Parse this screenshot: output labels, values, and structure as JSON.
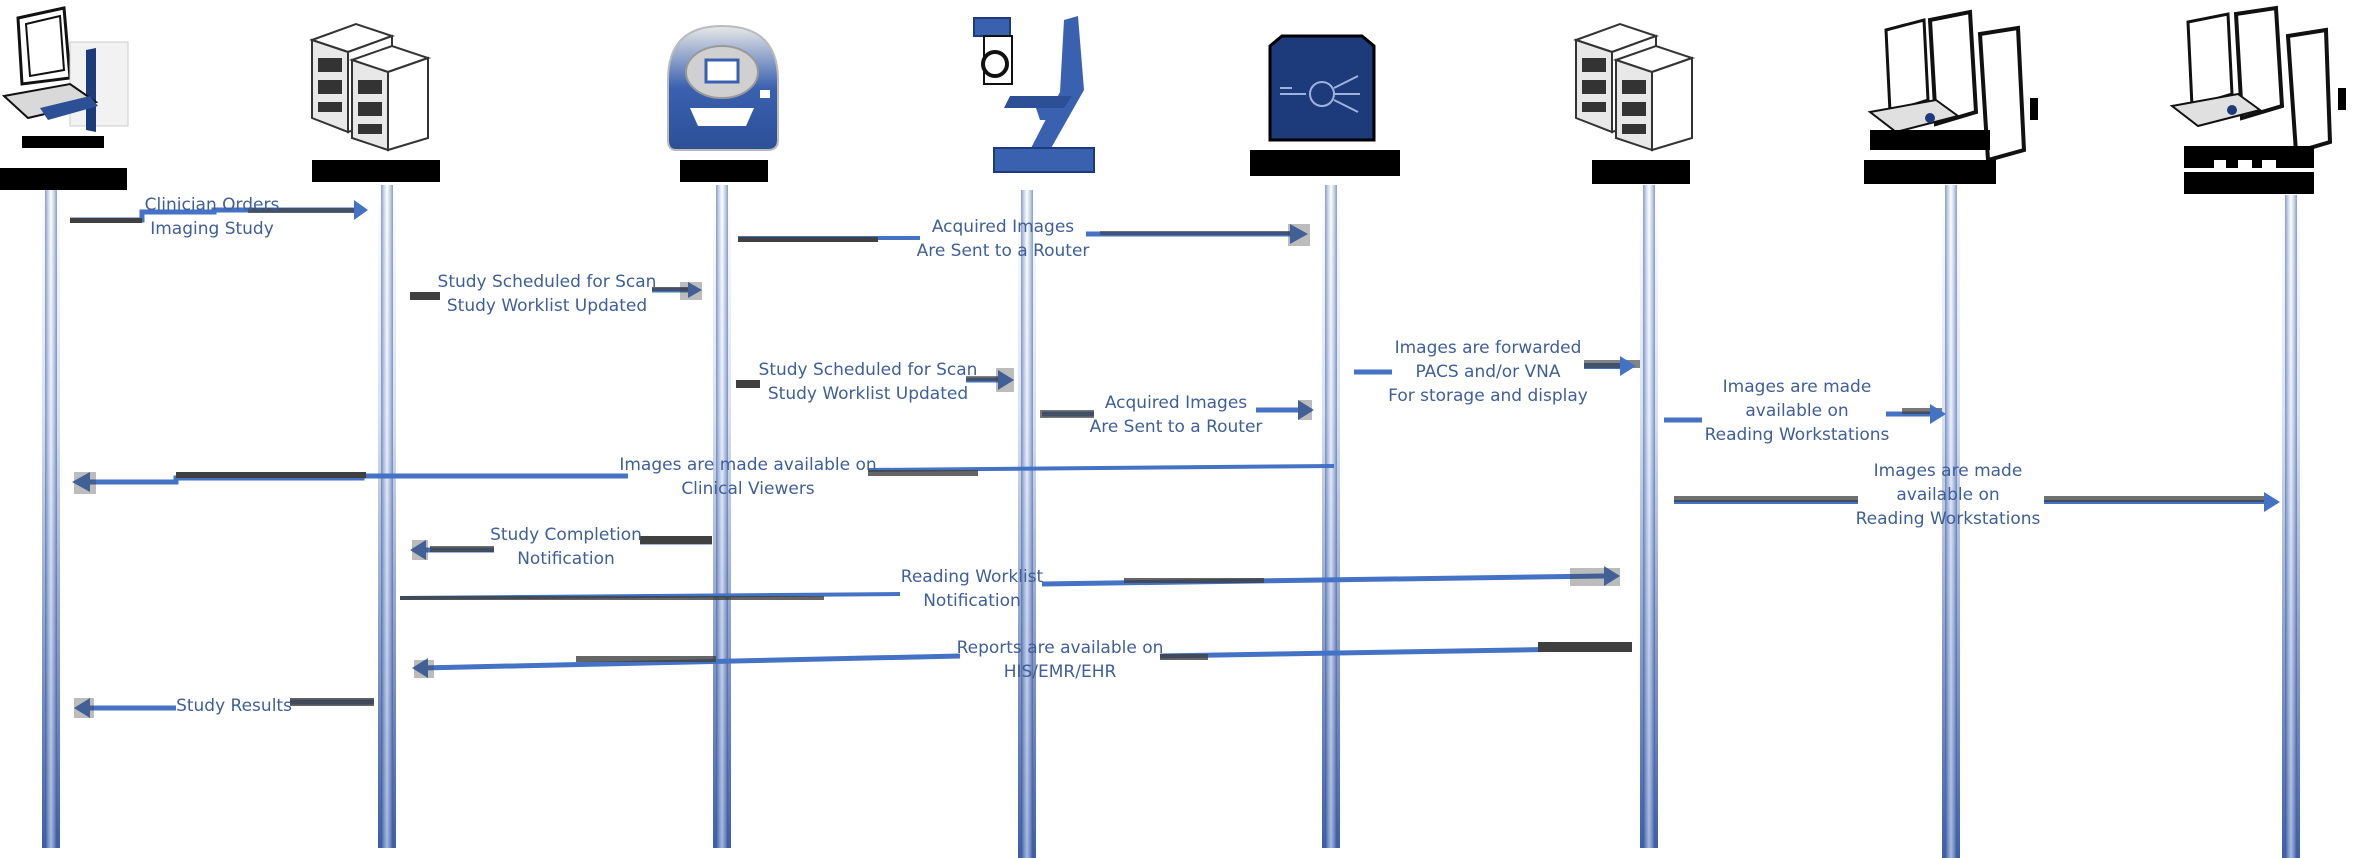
{
  "colors": {
    "lifeline_dark": "#3e5ea9",
    "lifeline_light": "#e9eef8",
    "arrow_blue": "#4472c4",
    "arrow_dark": "#404040",
    "label_text": "#3f5f99",
    "device_blue": "#3a61b0",
    "device_navy": "#1d3a7a",
    "header_black": "#000000"
  },
  "actors": [
    {
      "id": "clinician",
      "icon": "workstation-icon"
    },
    {
      "id": "ris",
      "icon": "server-icon"
    },
    {
      "id": "ct",
      "icon": "ct-scanner-icon"
    },
    {
      "id": "microscope",
      "icon": "microscope-icon"
    },
    {
      "id": "router",
      "icon": "router-icon"
    },
    {
      "id": "pacs",
      "icon": "server-icon"
    },
    {
      "id": "reading-ws-1",
      "icon": "multi-monitor-icon"
    },
    {
      "id": "reading-ws-2",
      "icon": "multi-monitor-icon"
    }
  ],
  "messages": [
    {
      "id": "m1",
      "lines": [
        "Clinician Orders",
        "Imaging Study"
      ]
    },
    {
      "id": "m2",
      "lines": [
        "Acquired Images",
        "Are Sent to a Router"
      ]
    },
    {
      "id": "m3",
      "lines": [
        "Study Scheduled for Scan",
        "Study Worklist Updated"
      ]
    },
    {
      "id": "m4",
      "lines": [
        "Images are forwarded",
        "PACS and/or VNA",
        "For storage and display"
      ]
    },
    {
      "id": "m5",
      "lines": [
        "Study Scheduled for Scan",
        "Study Worklist Updated"
      ]
    },
    {
      "id": "m6",
      "lines": [
        "Acquired Images",
        "Are Sent to a Router"
      ]
    },
    {
      "id": "m7",
      "lines": [
        "Images are made",
        "available on",
        "Reading Workstations"
      ]
    },
    {
      "id": "m8",
      "lines": [
        "Images are made available on",
        "Clinical Viewers"
      ]
    },
    {
      "id": "m9",
      "lines": [
        "Images are made",
        "available on",
        "Reading Workstations"
      ]
    },
    {
      "id": "m10",
      "lines": [
        "Study Completion",
        "Notification"
      ]
    },
    {
      "id": "m11",
      "lines": [
        "Reading Worklist",
        "Notification"
      ]
    },
    {
      "id": "m12",
      "lines": [
        "Reports are available on",
        "HIS/EMR/EHR"
      ]
    },
    {
      "id": "m13",
      "lines": [
        "Study Results"
      ]
    }
  ]
}
